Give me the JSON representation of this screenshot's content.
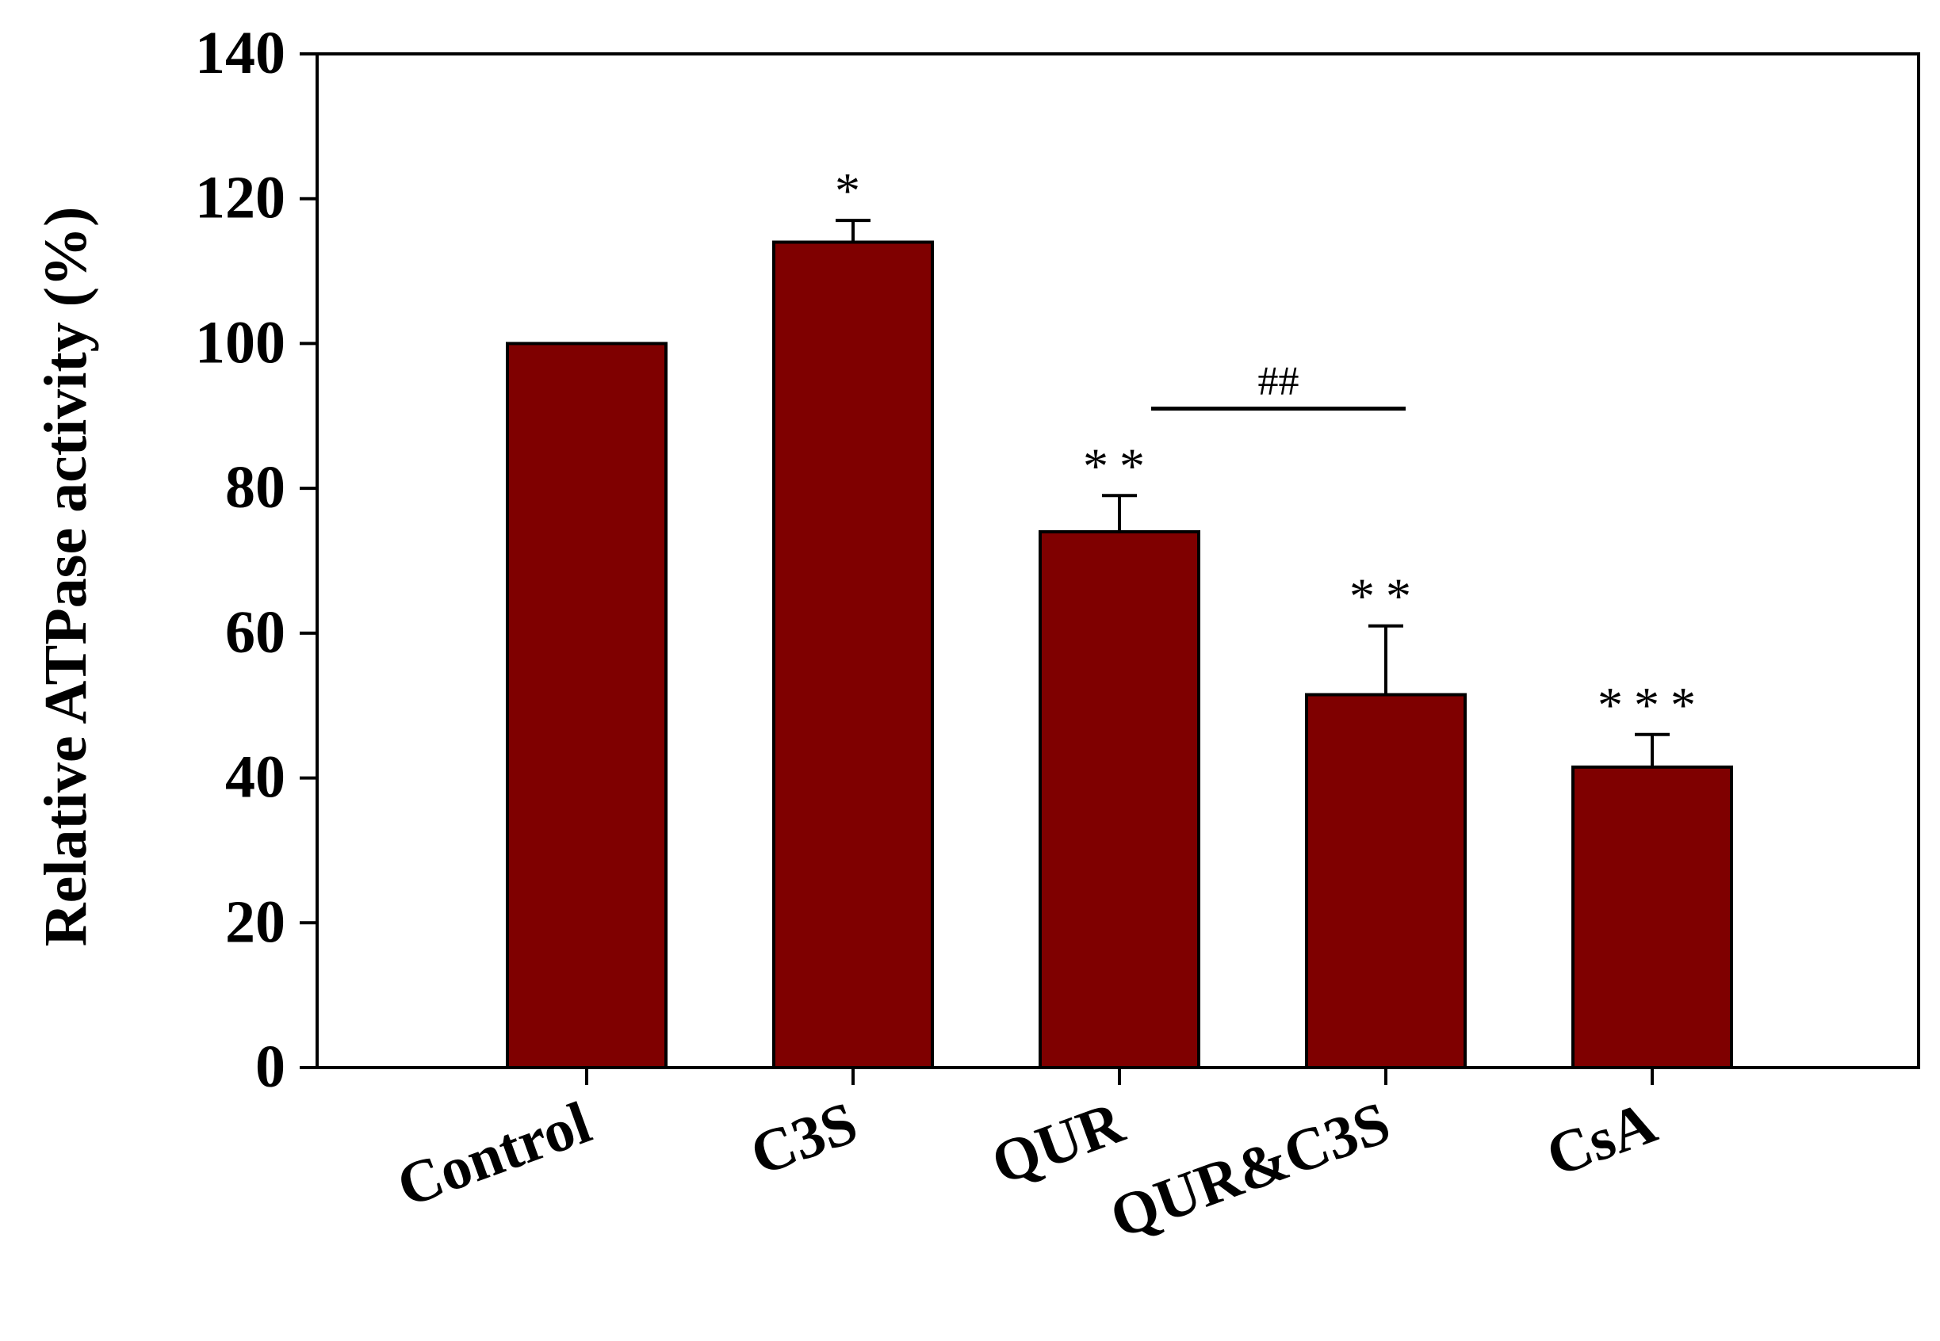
{
  "chart_data": {
    "type": "bar",
    "title": "",
    "xlabel": "",
    "ylabel": "Relative ATPase activity (%)",
    "ylim": [
      0,
      140
    ],
    "yticks": [
      "0",
      "20",
      "40",
      "60",
      "80",
      "100",
      "120",
      "140"
    ],
    "categories": [
      "Control",
      "C3S",
      "QUR",
      "QUR&C3S",
      "CsA"
    ],
    "values": [
      100,
      114,
      74,
      51.5,
      41.5
    ],
    "errors": [
      0,
      3,
      5,
      9.5,
      4.5
    ],
    "significance": [
      "",
      "*",
      "**",
      "**",
      "***"
    ],
    "comparison": {
      "label": "##",
      "from": "QUR",
      "to": "QUR&C3S",
      "y": 91
    },
    "grid": false,
    "legend": "none",
    "colors": {
      "bar": "#7f0000",
      "axis": "#000000"
    }
  }
}
